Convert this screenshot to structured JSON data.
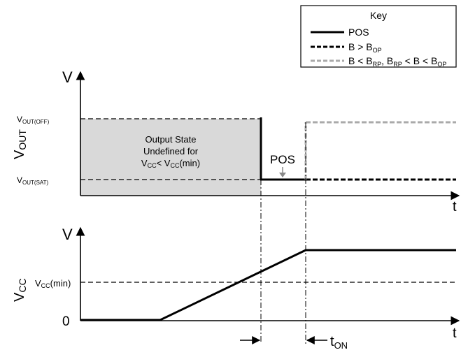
{
  "key": {
    "title": "Key",
    "entries": [
      {
        "label": "POS",
        "color": "#000000",
        "dashed": false
      },
      {
        "label_main": "B > B",
        "label_sub": "OP",
        "color": "#000000",
        "dashed": true
      },
      {
        "parts": [
          "B < B",
          "RP",
          ", B",
          "RP",
          " < B < B",
          "OP"
        ],
        "color": "#aaaaaa",
        "dashed": true
      }
    ]
  },
  "top_plot": {
    "axis_v": "V",
    "axis_t": "t",
    "ylabel_main": "V",
    "ylabel_sub": "OUT",
    "level_off_main": "V",
    "level_off_sub": "OUT(OFF)",
    "level_sat_main": "V",
    "level_sat_sub": "OUT(SAT)",
    "region_line1": "Output State",
    "region_line2": "Undefined for",
    "region_line3_parts": [
      "V",
      "CC",
      "< V",
      "CC",
      "(min)"
    ],
    "pos_label": "POS",
    "region_fill": "#d9d9d9"
  },
  "bottom_plot": {
    "axis_v": "V",
    "axis_t": "t",
    "ylabel_main": "V",
    "ylabel_sub": "CC",
    "level_min_parts": [
      "V",
      "CC",
      "(min)"
    ],
    "zero_label": "0",
    "t_on_main": "t",
    "t_on_sub": "ON"
  }
}
